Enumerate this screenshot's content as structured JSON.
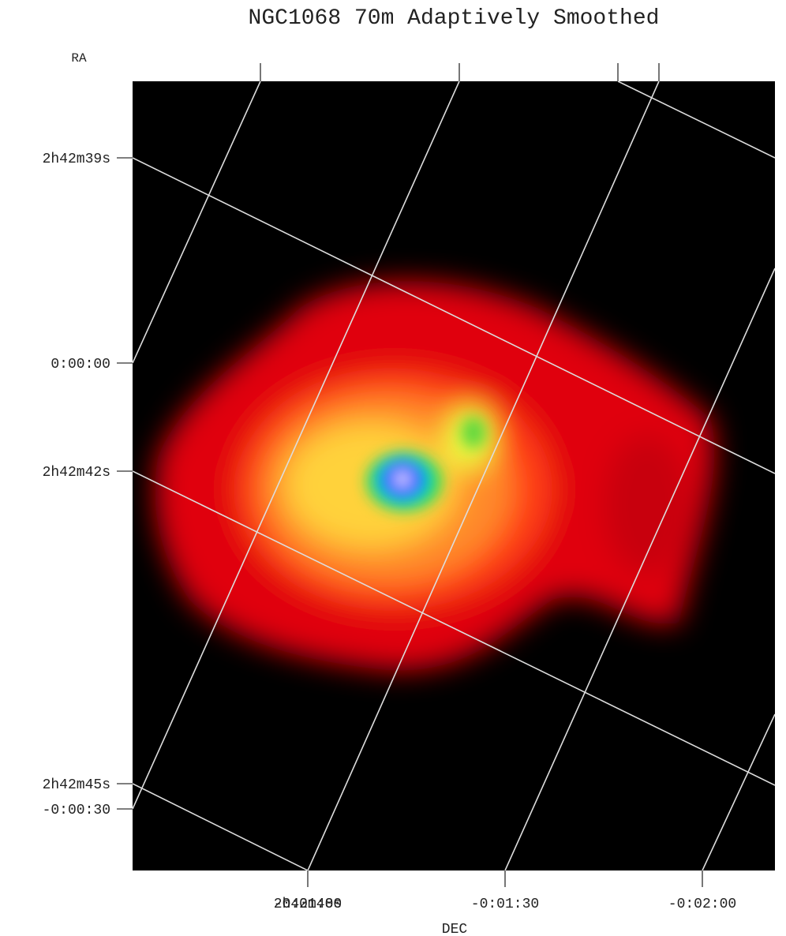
{
  "title": "NGC1068 70m Adaptively Smoothed",
  "ra_label": "RA",
  "dec_label": "DEC",
  "left_labels": [
    "2h42m39s",
    "0:00:00",
    "2h42m42s",
    "2h42m45s",
    "-0:00:30"
  ],
  "bottom_labels": [
    "2h42m48s",
    "-0:01:00",
    "-0:01:30",
    "-0:02:00"
  ]
}
